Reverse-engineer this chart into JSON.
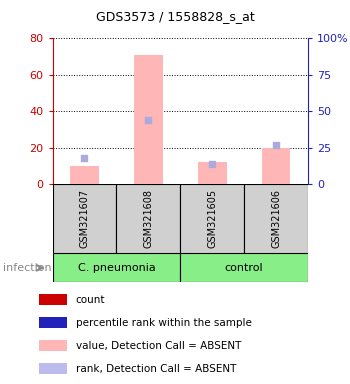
{
  "title": "GDS3573 / 1558828_s_at",
  "samples": [
    "GSM321607",
    "GSM321608",
    "GSM321605",
    "GSM321606"
  ],
  "group_split": 2,
  "bar_values": [
    10,
    71,
    12,
    20
  ],
  "rank_values": [
    18,
    44,
    14,
    27
  ],
  "bar_color": "#ffb6b6",
  "rank_dot_color_absent": "#aaaadd",
  "ylim_left": [
    0,
    80
  ],
  "ylim_right": [
    0,
    100
  ],
  "yticks_left": [
    0,
    20,
    40,
    60,
    80
  ],
  "yticks_right": [
    0,
    25,
    50,
    75,
    100
  ],
  "ytick_labels_left": [
    "0",
    "20",
    "40",
    "60",
    "80"
  ],
  "ytick_labels_right": [
    "0",
    "25",
    "50",
    "75",
    "100%"
  ],
  "left_axis_color": "#cc0000",
  "right_axis_color": "#2222bb",
  "sample_box_color": "#d0d0d0",
  "cpneu_color": "#88ee88",
  "ctrl_color": "#88ee88",
  "infection_label": "infection",
  "infection_color": "#888888",
  "legend_items": [
    {
      "color": "#cc0000",
      "label": "count"
    },
    {
      "color": "#2222bb",
      "label": "percentile rank within the sample"
    },
    {
      "color": "#ffb6b6",
      "label": "value, Detection Call = ABSENT"
    },
    {
      "color": "#bbbbee",
      "label": "rank, Detection Call = ABSENT"
    }
  ],
  "title_fontsize": 9,
  "tick_fontsize": 8,
  "sample_fontsize": 7,
  "group_fontsize": 8,
  "legend_fontsize": 7.5
}
